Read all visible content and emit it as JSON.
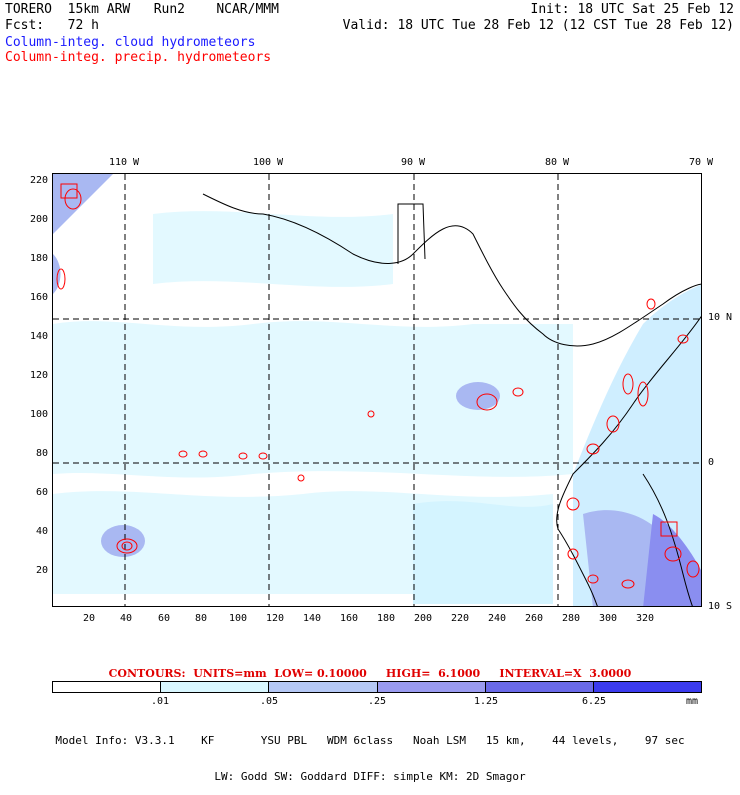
{
  "header": {
    "model": "TORERO  15km ARW   Run2    NCAR/MMM",
    "init": "Init: 18 UTC Sat 25 Feb 12",
    "fcst": "Fcst:   72 h",
    "valid": "Valid: 18 UTC Tue 28 Feb 12 (12 CST Tue 28 Feb 12)"
  },
  "legend": [
    {
      "label": "Column-integ. cloud hydrometeors",
      "color": "#1a1aff"
    },
    {
      "label": "Column-integ. precip. hydrometeors",
      "color": "#ff0000"
    }
  ],
  "map": {
    "x_ticks": [
      "20",
      "40",
      "60",
      "80",
      "100",
      "120",
      "140",
      "160",
      "180",
      "200",
      "220",
      "240",
      "260",
      "280",
      "300",
      "320"
    ],
    "y_ticks": [
      "220",
      "200",
      "180",
      "160",
      "140",
      "120",
      "100",
      "80",
      "60",
      "40",
      "20"
    ],
    "lon_labels": [
      "110 W",
      "100 W",
      "90 W",
      "80 W",
      "70 W"
    ],
    "lat_labels": [
      "10 N",
      "0",
      "10 S"
    ]
  },
  "contour_info": "CONTOURS:  UNITS=mm  LOW= 0.10000     HIGH=  6.1000     INTERVAL=X  3.0000",
  "colorbar": {
    "colors": [
      "#ffffff",
      "#d9f7ff",
      "#b5c8f5",
      "#9a9bf0",
      "#6a6ae8",
      "#3b3bee"
    ],
    "labels": [
      ".01",
      ".05",
      ".25",
      "1.25",
      "6.25"
    ],
    "unit": "mm"
  },
  "model_info": {
    "line1": "Model Info: V3.3.1    KF       YSU PBL   WDM 6class   Noah LSM   15 km,    44 levels,    97 sec",
    "line2": "LW: Godd SW: Goddard DIFF: simple KM: 2D Smagor"
  }
}
